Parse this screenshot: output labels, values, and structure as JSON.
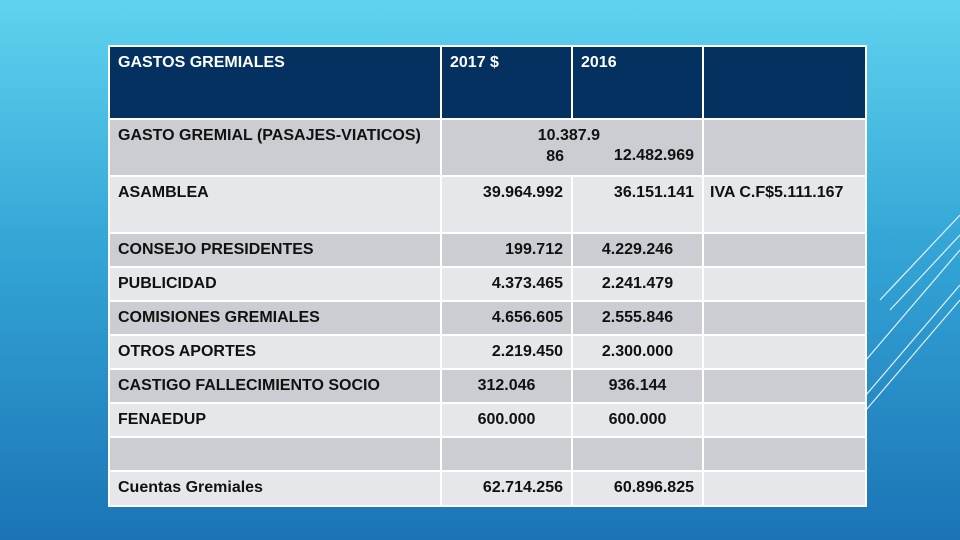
{
  "table": {
    "header": {
      "concept": "GASTOS GREMIALES",
      "y2017": "2017 $",
      "y2016": "2016",
      "note": ""
    },
    "rows": [
      {
        "concept": "GASTO GREMIAL (PASAJES-VIATICOS)",
        "v2017_line1": "10.387.9",
        "v2017_line2": "86",
        "v2016": "12.482.969",
        "note": ""
      },
      {
        "concept": "ASAMBLEA",
        "v2017": "39.964.992",
        "v2016": "36.151.141",
        "note": "IVA C.F$5.111.167"
      },
      {
        "concept": "CONSEJO PRESIDENTES",
        "v2017": "199.712",
        "v2016": "4.229.246",
        "note": ""
      },
      {
        "concept": "PUBLICIDAD",
        "v2017": "4.373.465",
        "v2016": "2.241.479",
        "note": ""
      },
      {
        "concept": "COMISIONES GREMIALES",
        "v2017": "4.656.605",
        "v2016": "2.555.846",
        "note": ""
      },
      {
        "concept": "OTROS APORTES",
        "v2017": "2.219.450",
        "v2016": "2.300.000",
        "note": ""
      },
      {
        "concept": "CASTIGO FALLECIMIENTO SOCIO",
        "v2017": "312.046",
        "v2016": "936.144",
        "note": ""
      },
      {
        "concept": "FENAEDUP",
        "v2017": "600.000",
        "v2016": "600.000",
        "note": ""
      },
      {
        "concept": "",
        "v2017": "",
        "v2016": "",
        "note": ""
      },
      {
        "concept": "Cuentas Gremiales",
        "v2017": "62.714.256",
        "v2016": "60.896.825",
        "note": ""
      }
    ]
  },
  "colors": {
    "header_bg": "#04315f",
    "row_odd": "#cbcdd2",
    "row_even": "#e6e7ea",
    "background_top": "#5fd3ef",
    "background_bottom": "#1b74b6"
  }
}
